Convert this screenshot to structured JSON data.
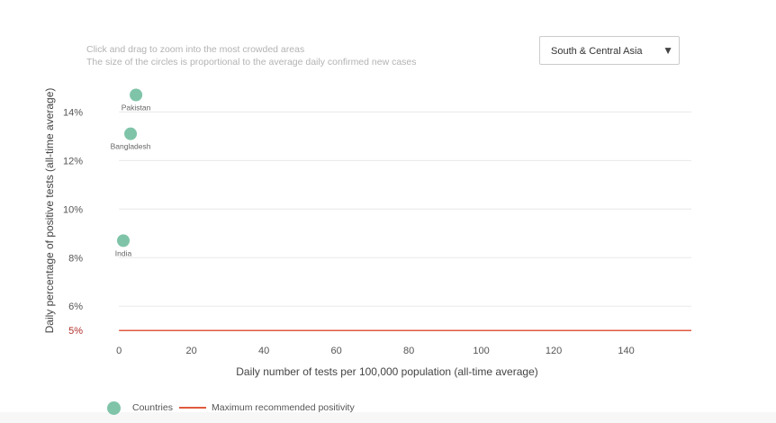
{
  "instructions": [
    "Click and drag to zoom into the most crowded areas",
    "The size of the circles is proportional to the average daily confirmed new cases"
  ],
  "region_select": {
    "selected": "South & Central Asia",
    "arrow_icon": "triangle-down-icon"
  },
  "legend": {
    "countries_label": "Countries",
    "threshold_label": "Maximum recommended positivity"
  },
  "colors": {
    "points": "#7fc4a8",
    "threshold": "#e05a3e",
    "threshold_label": "#b0302c",
    "grid": "#e8e8e8",
    "tick_text": "#555555",
    "axis_title": "#444444"
  },
  "chart_data": {
    "type": "scatter",
    "xlabel": "Daily number of tests per 100,000 population (all-time average)",
    "ylabel": "Daily percentage of positive tests (all-time average)",
    "xlim": [
      -7,
      158
    ],
    "ylim": [
      4.6,
      15.2
    ],
    "xticks": [
      0,
      20,
      40,
      60,
      80,
      100,
      120,
      140
    ],
    "yticks": [
      6,
      8,
      10,
      12,
      14
    ],
    "ytick_labels": [
      "6%",
      "8%",
      "10%",
      "12%",
      "14%"
    ],
    "threshold": {
      "y": 5,
      "label": "5%"
    },
    "grid": true,
    "legend_position": "bottom-left",
    "points": [
      {
        "label": "Pakistan",
        "x": 4.7,
        "y": 14.7
      },
      {
        "label": "Bangladesh",
        "x": 3.2,
        "y": 13.1
      },
      {
        "label": "India",
        "x": 1.2,
        "y": 8.7
      }
    ]
  }
}
